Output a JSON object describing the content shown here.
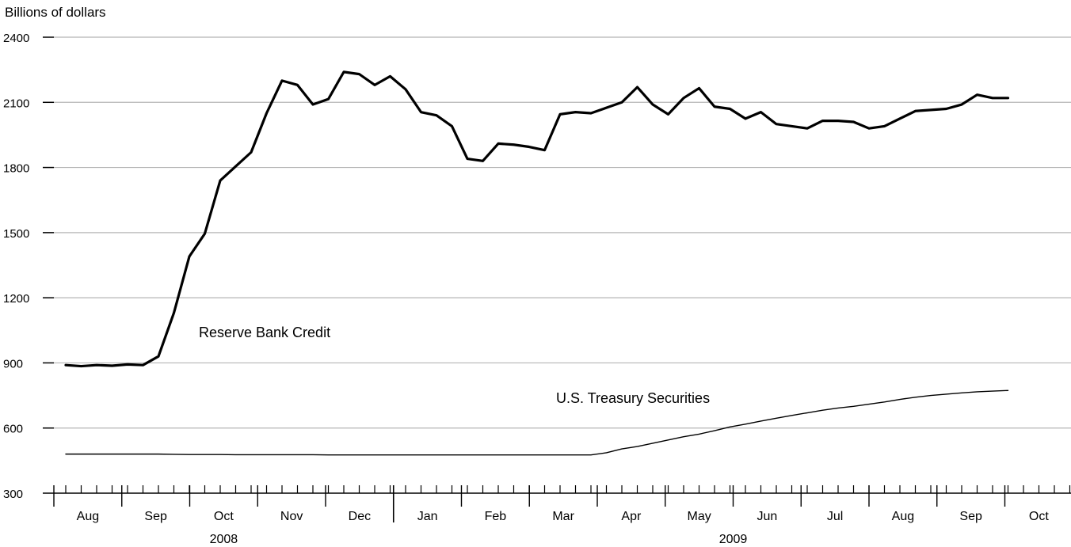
{
  "chart_data": {
    "type": "line",
    "ylabel": "Billions of dollars",
    "ylim": [
      300,
      2400
    ],
    "yticks": [
      300,
      600,
      900,
      1200,
      1500,
      1800,
      2100,
      2400
    ],
    "grid": true,
    "x_month_labels": [
      "Aug",
      "Sep",
      "Oct",
      "Nov",
      "Dec",
      "Jan",
      "Feb",
      "Mar",
      "Apr",
      "May",
      "Jun",
      "Jul",
      "Aug",
      "Sep",
      "Oct"
    ],
    "year_labels": [
      {
        "label": "2008",
        "month_index": 2
      },
      {
        "label": "2009",
        "month_index": 9.5
      }
    ],
    "series": [
      {
        "name": "Reserve Bank Credit",
        "stroke": "bold",
        "values": [
          890,
          885,
          890,
          887,
          893,
          890,
          930,
          1130,
          1390,
          1495,
          1740,
          1805,
          1870,
          2050,
          2200,
          2180,
          2090,
          2115,
          2240,
          2230,
          2180,
          2220,
          2160,
          2055,
          2040,
          1990,
          1840,
          1830,
          1910,
          1905,
          1895,
          1880,
          2045,
          2055,
          2050,
          2075,
          2100,
          2170,
          2090,
          2045,
          2120,
          2165,
          2080,
          2070,
          2025,
          2055,
          2000,
          1990,
          1980,
          2015,
          2015,
          2010,
          1980,
          1990,
          2025,
          2060,
          2065,
          2070,
          2090,
          2135,
          2120,
          2120
        ]
      },
      {
        "name": "U.S. Treasury Securities",
        "stroke": "thin",
        "values": [
          480,
          480,
          480,
          480,
          480,
          480,
          480,
          479,
          478,
          478,
          478,
          477,
          477,
          477,
          477,
          477,
          477,
          476,
          476,
          476,
          476,
          476,
          476,
          476,
          476,
          476,
          476,
          476,
          476,
          476,
          476,
          476,
          476,
          476,
          476,
          486,
          504,
          515,
          530,
          545,
          560,
          572,
          588,
          605,
          618,
          632,
          645,
          658,
          670,
          682,
          692,
          700,
          710,
          720,
          732,
          742,
          750,
          756,
          762,
          767,
          770,
          773
        ]
      }
    ]
  }
}
